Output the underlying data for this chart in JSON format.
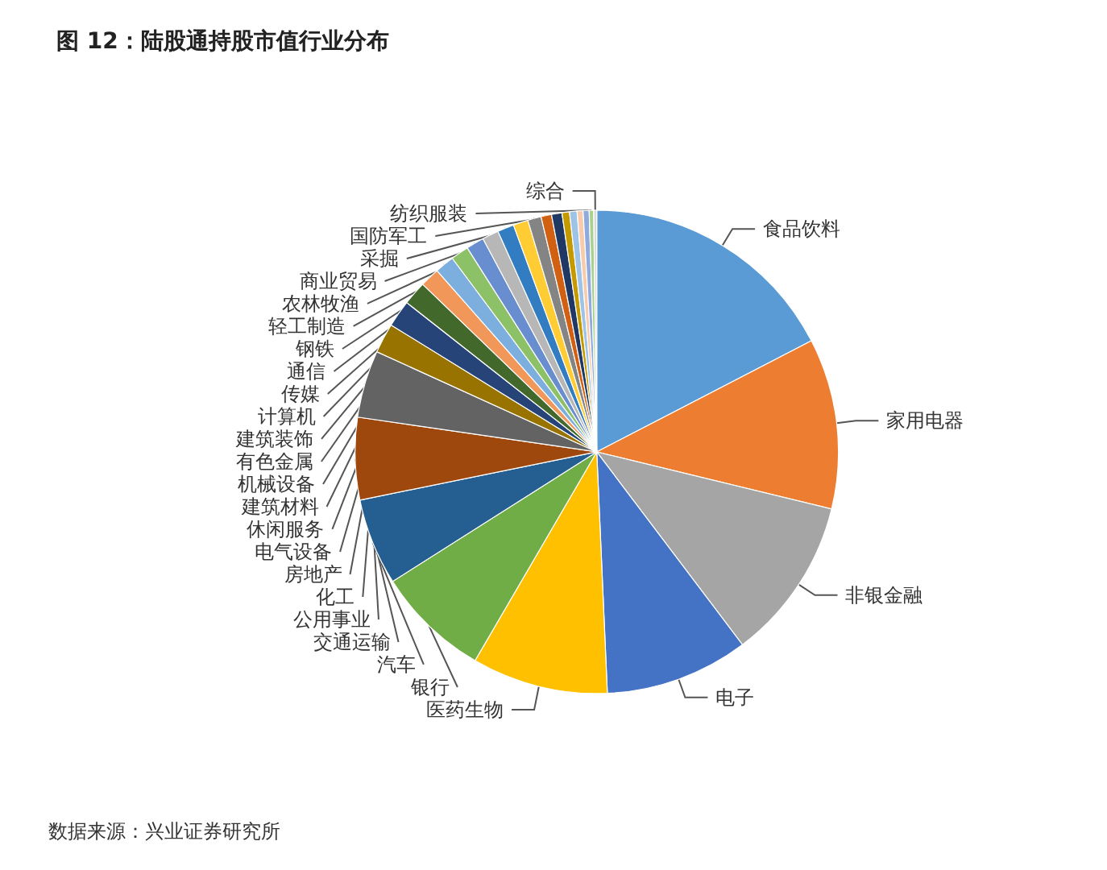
{
  "chart_data": {
    "type": "pie",
    "title": "图 12：陆股通持股市值行业分布",
    "categories": [
      "食品饮料",
      "家用电器",
      "非银金融",
      "电子",
      "医药生物",
      "银行",
      "汽车",
      "交通运输",
      "公用事业",
      "化工",
      "房地产",
      "电气设备",
      "休闲服务",
      "建筑材料",
      "机械设备",
      "有色金属",
      "建筑装饰",
      "计算机",
      "传媒",
      "通信",
      "钢铁",
      "轻工制造",
      "农林牧渔",
      "商业贸易",
      "采掘",
      "国防军工",
      "纺织服装",
      "综合"
    ],
    "values": [
      17.4,
      11.4,
      10.9,
      9.6,
      9.1,
      7.6,
      5.8,
      5.5,
      4.5,
      2.0,
      1.8,
      1.6,
      1.3,
      1.3,
      1.2,
      1.2,
      1.1,
      1.1,
      1.0,
      0.9,
      0.7,
      0.7,
      0.5,
      0.5,
      0.4,
      0.4,
      0.3,
      0.2
    ],
    "colors": [
      "#5b9bd5",
      "#ed7d31",
      "#a5a5a5",
      "#4472c4",
      "#ffc000",
      "#70ad47",
      "#255e91",
      "#9e480e",
      "#636363",
      "#997300",
      "#264478",
      "#43682b",
      "#f1975a",
      "#7cafdd",
      "#8cc168",
      "#698ed0",
      "#b7b7b7",
      "#327dc2",
      "#ffcd33",
      "#848484",
      "#d26012",
      "#203864",
      "#c59a00",
      "#9dc3e6",
      "#f8cbad",
      "#8faadc",
      "#a9d18e",
      "#d9d9d9"
    ],
    "annotations": [
      "数据来源：兴业证券研究所"
    ]
  }
}
